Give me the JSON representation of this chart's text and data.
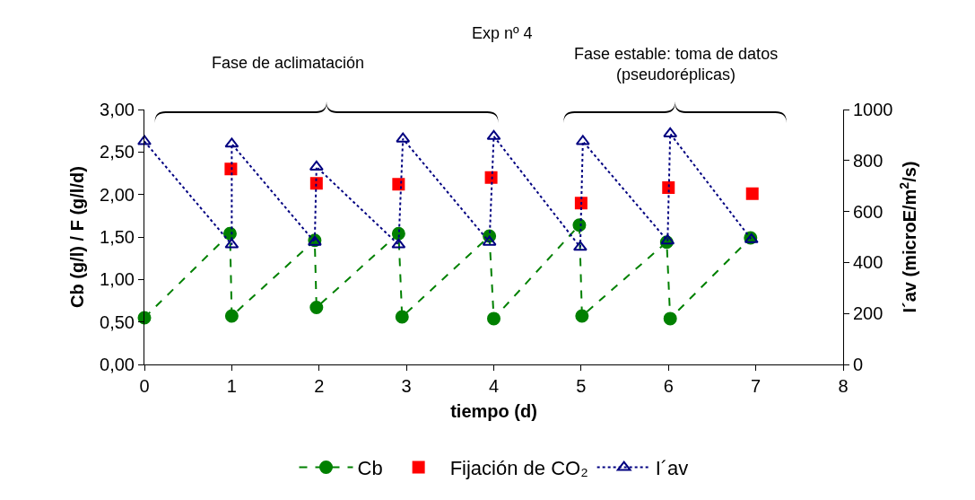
{
  "chart_data": {
    "type": "line",
    "title": "Exp nº 4",
    "xlabel": "tiempo (d)",
    "ylabel": "Cb (g/l) / F (g/l/d)",
    "y2label": "I´av (microE/m$^{2}$/s)",
    "annotations": [
      "Fase de aclimatación",
      "Fase estable: toma de datos (pseudoréplicas)"
    ],
    "series": [
      {
        "name": "Cb",
        "color": "#008000",
        "marker": "circle",
        "line_style": "dashed",
        "x": [
          0,
          0.98,
          1.0,
          1.95,
          1.97,
          2.91,
          2.95,
          3.95,
          4.0,
          4.98,
          5.01,
          5.98,
          6.02,
          6.94
        ],
        "values": [
          0.55,
          1.54,
          0.57,
          1.46,
          0.67,
          1.54,
          0.56,
          1.51,
          0.54,
          1.64,
          0.57,
          1.44,
          0.54,
          1.49
        ]
      },
      {
        "name": "Fijación de CO₂",
        "type": "scatter",
        "color": "#ff0000",
        "marker": "square",
        "x": [
          0.99,
          1.97,
          2.91,
          3.97,
          5.0,
          6.0,
          6.96
        ],
        "values": [
          2.3,
          2.13,
          2.12,
          2.2,
          1.9,
          2.08,
          2.01
        ]
      },
      {
        "name": "I´av",
        "axis": "y2",
        "color": "#000080",
        "marker": "triangle",
        "line_style": "dotted",
        "x": [
          0,
          1.0,
          1.0,
          1.95,
          1.97,
          2.91,
          2.96,
          3.95,
          4.0,
          4.99,
          5.02,
          5.99,
          6.02,
          6.95
        ],
        "values": [
          875,
          470,
          865,
          480,
          775,
          470,
          885,
          480,
          895,
          460,
          875,
          485,
          905,
          490
        ]
      }
    ],
    "xlim": [
      0,
      8
    ],
    "xticks": [
      0,
      1,
      2,
      3,
      4,
      5,
      6,
      7,
      8
    ],
    "ylim": [
      0,
      3
    ],
    "yticks": [
      {
        "value": 0,
        "label": "0,00"
      },
      {
        "value": 0.5,
        "label": "0,50"
      },
      {
        "value": 1,
        "label": "1,00"
      },
      {
        "value": 1.5,
        "label": "1,50"
      },
      {
        "value": 2,
        "label": "2,00"
      },
      {
        "value": 2.5,
        "label": "2,50"
      },
      {
        "value": 3,
        "label": "3,00"
      }
    ],
    "y2lim": [
      0,
      1000
    ],
    "y2ticks": [
      0,
      200,
      400,
      600,
      800,
      1000
    ],
    "grid": false,
    "legend": "bottom"
  }
}
